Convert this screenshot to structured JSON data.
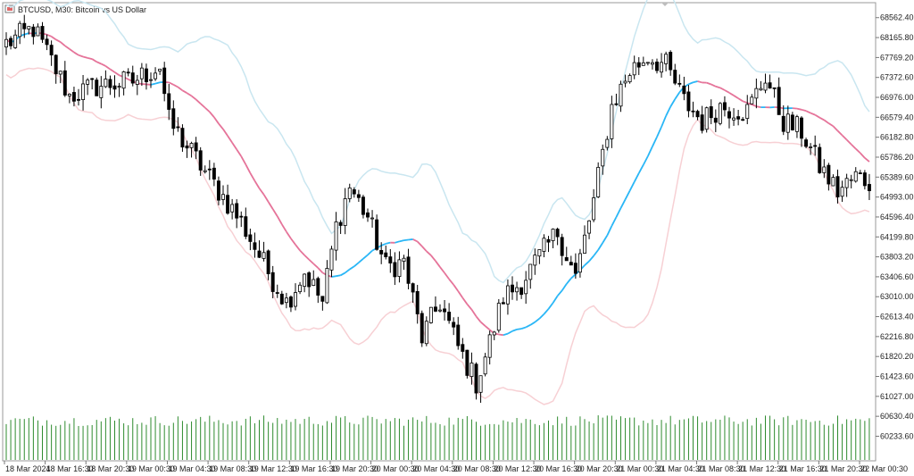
{
  "window": {
    "title": "BTCUSD, M30:  Bitcoin vs US Dollar"
  },
  "chart_data": {
    "type": "candlestick",
    "symbol": "BTCUSD",
    "timeframe": "M30",
    "description": "Bitcoin vs US Dollar",
    "y_ticks": [
      "68562.40",
      "68165.80",
      "67769.20",
      "67372.60",
      "66976.00",
      "66579.40",
      "66182.80",
      "65786.20",
      "65389.60",
      "64993.00",
      "64596.40",
      "64199.80",
      "63803.20",
      "63406.60",
      "63010.00",
      "62613.40",
      "62216.80",
      "61820.20",
      "61423.60",
      "61027.00",
      "60630.40",
      "60233.60"
    ],
    "x_ticks": [
      "18 Mar 2024",
      "18 Mar 16:30",
      "18 Mar 20:30",
      "19 Mar 00:30",
      "19 Mar 04:30",
      "19 Mar 08:30",
      "19 Mar 12:30",
      "19 Mar 16:30",
      "19 Mar 20:30",
      "20 Mar 00:30",
      "20 Mar 04:30",
      "20 Mar 08:30",
      "20 Mar 12:30",
      "20 Mar 16:30",
      "20 Mar 20:30",
      "21 Mar 00:30",
      "21 Mar 04:30",
      "21 Mar 08:30",
      "21 Mar 12:30",
      "21 Mar 16:30",
      "21 Mar 20:30",
      "22 Mar 00:30"
    ],
    "ylim": [
      60100,
      68700
    ],
    "close_anchors": [
      [
        0,
        68050
      ],
      [
        6,
        68350
      ],
      [
        10,
        67700
      ],
      [
        14,
        67000
      ],
      [
        20,
        67200
      ],
      [
        28,
        67300
      ],
      [
        34,
        67600
      ],
      [
        36,
        66500
      ],
      [
        44,
        65500
      ],
      [
        52,
        64500
      ],
      [
        58,
        63500
      ],
      [
        62,
        62900
      ],
      [
        66,
        63500
      ],
      [
        70,
        62900
      ],
      [
        73,
        64400
      ],
      [
        76,
        65200
      ],
      [
        80,
        64600
      ],
      [
        84,
        63600
      ],
      [
        88,
        63700
      ],
      [
        92,
        62200
      ],
      [
        96,
        62900
      ],
      [
        100,
        62000
      ],
      [
        104,
        61300
      ],
      [
        107,
        62100
      ],
      [
        110,
        63000
      ],
      [
        114,
        63300
      ],
      [
        118,
        63800
      ],
      [
        122,
        64300
      ],
      [
        126,
        63400
      ],
      [
        130,
        64900
      ],
      [
        134,
        66800
      ],
      [
        138,
        67500
      ],
      [
        142,
        67800
      ],
      [
        146,
        67600
      ],
      [
        150,
        66900
      ],
      [
        154,
        66500
      ],
      [
        158,
        66800
      ],
      [
        164,
        66700
      ],
      [
        168,
        67400
      ],
      [
        172,
        66500
      ],
      [
        176,
        66300
      ],
      [
        180,
        65600
      ],
      [
        184,
        65100
      ],
      [
        188,
        65400
      ],
      [
        191,
        65300
      ]
    ],
    "candle_count": 192,
    "series": [
      {
        "name": "BB middle",
        "color_rising": "#29b6f6",
        "color_falling": "#e57399"
      },
      {
        "name": "BB upper",
        "color": "#c9e6f0"
      },
      {
        "name": "BB lower",
        "color": "#f7d0d4"
      }
    ],
    "volume_color": "#2e8b2e",
    "grid": false
  }
}
